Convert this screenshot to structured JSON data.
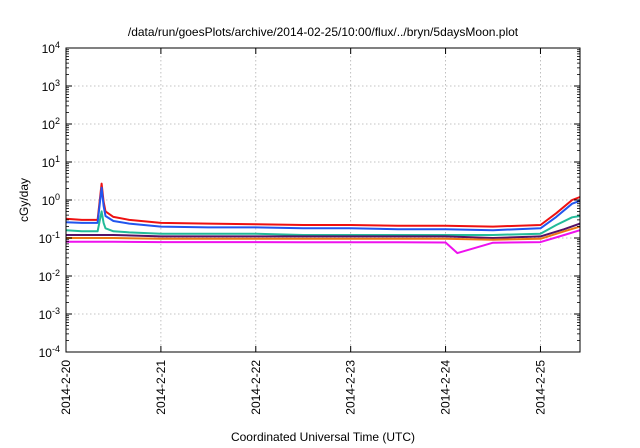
{
  "chart_data": {
    "type": "line",
    "title": "/data/run/goesPlots/archive/2014-02-25/10:00/flux/../bryn/5daysMoon.plot",
    "xlabel": "Coordinated Universal Time (UTC)",
    "ylabel": "cGy/day",
    "x_range": [
      "2014-02-20T00:00",
      "2014-02-25T10:00"
    ],
    "x_ticks": [
      "2014-2-20",
      "2014-2-21",
      "2014-2-22",
      "2014-2-23",
      "2014-2-24",
      "2014-2-25"
    ],
    "y_scale": "log",
    "ylim": [
      0.0001,
      10000
    ],
    "y_ticks": [
      {
        "base": "10",
        "exp": "-4"
      },
      {
        "base": "10",
        "exp": "-3"
      },
      {
        "base": "10",
        "exp": "-2"
      },
      {
        "base": "10",
        "exp": "-1"
      },
      {
        "base": "10",
        "exp": "0"
      },
      {
        "base": "10",
        "exp": "1"
      },
      {
        "base": "10",
        "exp": "2"
      },
      {
        "base": "10",
        "exp": "3"
      },
      {
        "base": "10",
        "exp": "4"
      }
    ],
    "grid": true,
    "series": [
      {
        "color": "#ee1111",
        "x": [
          "2014-02-20T00:00",
          "2014-02-20T04:00",
          "2014-02-20T08:00",
          "2014-02-20T09:00",
          "2014-02-20T09:30",
          "2014-02-20T10:00",
          "2014-02-20T12:00",
          "2014-02-20T16:00",
          "2014-02-21T00:00",
          "2014-02-21T12:00",
          "2014-02-22T00:00",
          "2014-02-22T12:00",
          "2014-02-23T00:00",
          "2014-02-23T12:00",
          "2014-02-24T00:00",
          "2014-02-24T12:00",
          "2014-02-25T00:00",
          "2014-02-25T04:00",
          "2014-02-25T08:00",
          "2014-02-25T10:00"
        ],
        "y": [
          0.32,
          0.3,
          0.3,
          2.7,
          0.9,
          0.5,
          0.36,
          0.3,
          0.25,
          0.24,
          0.23,
          0.22,
          0.22,
          0.21,
          0.21,
          0.2,
          0.22,
          0.45,
          1.0,
          1.2
        ]
      },
      {
        "color": "#2255ee",
        "x": [
          "2014-02-20T00:00",
          "2014-02-20T04:00",
          "2014-02-20T08:00",
          "2014-02-20T09:00",
          "2014-02-20T09:30",
          "2014-02-20T10:00",
          "2014-02-20T12:00",
          "2014-02-20T16:00",
          "2014-02-21T00:00",
          "2014-02-21T12:00",
          "2014-02-22T00:00",
          "2014-02-22T12:00",
          "2014-02-23T00:00",
          "2014-02-23T12:00",
          "2014-02-24T00:00",
          "2014-02-24T12:00",
          "2014-02-25T00:00",
          "2014-02-25T04:00",
          "2014-02-25T08:00",
          "2014-02-25T10:00"
        ],
        "y": [
          0.26,
          0.25,
          0.25,
          2.1,
          0.7,
          0.38,
          0.28,
          0.24,
          0.2,
          0.19,
          0.19,
          0.18,
          0.18,
          0.17,
          0.17,
          0.16,
          0.18,
          0.36,
          0.8,
          0.95
        ]
      },
      {
        "color": "#22bb99",
        "x": [
          "2014-02-20T00:00",
          "2014-02-20T04:00",
          "2014-02-20T08:00",
          "2014-02-20T09:00",
          "2014-02-20T09:30",
          "2014-02-20T10:00",
          "2014-02-20T12:00",
          "2014-02-20T16:00",
          "2014-02-21T00:00",
          "2014-02-21T12:00",
          "2014-02-22T00:00",
          "2014-02-22T12:00",
          "2014-02-23T00:00",
          "2014-02-23T12:00",
          "2014-02-24T00:00",
          "2014-02-24T12:00",
          "2014-02-25T00:00",
          "2014-02-25T04:00",
          "2014-02-25T08:00",
          "2014-02-25T10:00"
        ],
        "y": [
          0.16,
          0.15,
          0.15,
          0.5,
          0.25,
          0.18,
          0.15,
          0.14,
          0.13,
          0.13,
          0.13,
          0.12,
          0.12,
          0.12,
          0.12,
          0.12,
          0.13,
          0.22,
          0.35,
          0.38
        ]
      },
      {
        "color": "#551166",
        "x": [
          "2014-02-20T00:00",
          "2014-02-20T12:00",
          "2014-02-21T00:00",
          "2014-02-21T12:00",
          "2014-02-22T00:00",
          "2014-02-22T12:00",
          "2014-02-23T00:00",
          "2014-02-23T12:00",
          "2014-02-24T00:00",
          "2014-02-24T12:00",
          "2014-02-25T00:00",
          "2014-02-25T06:00",
          "2014-02-25T10:00"
        ],
        "y": [
          0.12,
          0.12,
          0.11,
          0.11,
          0.11,
          0.11,
          0.11,
          0.11,
          0.11,
          0.1,
          0.11,
          0.17,
          0.24
        ]
      },
      {
        "color": "#ee7711",
        "x": [
          "2014-02-20T00:00",
          "2014-02-20T12:00",
          "2014-02-21T00:00",
          "2014-02-21T12:00",
          "2014-02-22T00:00",
          "2014-02-22T12:00",
          "2014-02-23T00:00",
          "2014-02-23T12:00",
          "2014-02-24T00:00",
          "2014-02-24T12:00",
          "2014-02-25T00:00",
          "2014-02-25T06:00",
          "2014-02-25T10:00"
        ],
        "y": [
          0.1,
          0.1,
          0.095,
          0.095,
          0.095,
          0.095,
          0.095,
          0.095,
          0.095,
          0.09,
          0.095,
          0.15,
          0.2
        ]
      },
      {
        "color": "#ee11ee",
        "x": [
          "2014-02-20T00:00",
          "2014-02-20T12:00",
          "2014-02-21T00:00",
          "2014-02-21T12:00",
          "2014-02-22T00:00",
          "2014-02-22T12:00",
          "2014-02-23T00:00",
          "2014-02-23T12:00",
          "2014-02-24T00:00",
          "2014-02-24T03:00",
          "2014-02-24T12:00",
          "2014-02-25T00:00",
          "2014-02-25T06:00",
          "2014-02-25T10:00"
        ],
        "y": [
          0.08,
          0.08,
          0.078,
          0.078,
          0.078,
          0.077,
          0.077,
          0.077,
          0.076,
          0.04,
          0.075,
          0.078,
          0.12,
          0.16
        ]
      }
    ]
  }
}
